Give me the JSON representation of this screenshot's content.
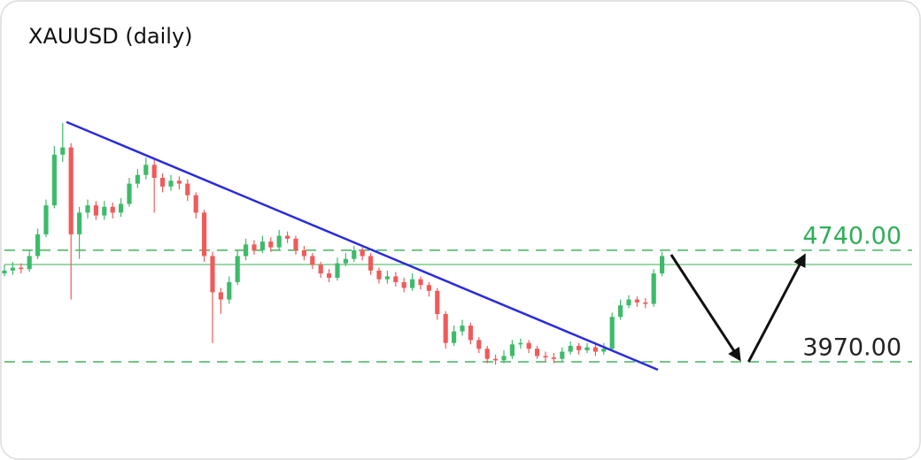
{
  "chart_data": {
    "type": "candlestick",
    "title": "XAUUSD (daily)",
    "up_color": "#3dbb6a",
    "down_color": "#f05a5a",
    "xlim": [
      0,
      110
    ],
    "ylim": [
      3750,
      5900
    ],
    "open": [
      4580,
      4600,
      4620,
      4610,
      4700,
      4850,
      5050,
      5400,
      5450,
      4850,
      5000,
      5050,
      4980,
      5040,
      5000,
      5060,
      5200,
      5260,
      5330,
      5240,
      5180,
      5220,
      5200,
      5120,
      5000,
      4700,
      4450,
      4400,
      4520,
      4700,
      4780,
      4740,
      4800,
      4760,
      4840,
      4820,
      4740,
      4700,
      4640,
      4580,
      4550,
      4650,
      4680,
      4740,
      4700,
      4600,
      4540,
      4560,
      4520,
      4480,
      4540,
      4500,
      4460,
      4300,
      4100,
      4180,
      4220,
      4120,
      4060,
      3990,
      3980,
      4010,
      4090,
      4100,
      4060,
      4010,
      4000,
      3990,
      4040,
      4080,
      4050,
      4070,
      4040,
      4060,
      4280,
      4360,
      4400,
      4380,
      4370,
      4580
    ],
    "high": [
      4640,
      4660,
      4650,
      4740,
      4890,
      5090,
      5460,
      5620,
      5480,
      5040,
      5090,
      5080,
      5080,
      5070,
      5100,
      5240,
      5300,
      5380,
      5370,
      5270,
      5260,
      5250,
      5230,
      5140,
      5020,
      4730,
      4480,
      4560,
      4740,
      4820,
      4810,
      4840,
      4830,
      4880,
      4870,
      4840,
      4770,
      4720,
      4660,
      4610,
      4690,
      4720,
      4770,
      4760,
      4720,
      4620,
      4600,
      4590,
      4550,
      4580,
      4560,
      4520,
      4480,
      4320,
      4220,
      4260,
      4240,
      4140,
      4080,
      4020,
      4050,
      4120,
      4130,
      4120,
      4080,
      4040,
      4030,
      4070,
      4110,
      4100,
      4100,
      4090,
      4100,
      4310,
      4400,
      4430,
      4420,
      4410,
      4610,
      4730
    ],
    "low": [
      4560,
      4570,
      4580,
      4590,
      4680,
      4830,
      5030,
      5350,
      4400,
      4680,
      4960,
      4950,
      4950,
      4960,
      4970,
      5040,
      5170,
      5230,
      5000,
      5140,
      5150,
      5160,
      5080,
      4960,
      4660,
      4100,
      4300,
      4370,
      4500,
      4670,
      4710,
      4720,
      4730,
      4740,
      4790,
      4710,
      4670,
      4610,
      4550,
      4520,
      4530,
      4630,
      4660,
      4670,
      4570,
      4510,
      4510,
      4490,
      4450,
      4460,
      4470,
      4420,
      4260,
      4060,
      4080,
      4150,
      4090,
      4030,
      3960,
      3950,
      3960,
      3990,
      4060,
      4030,
      3990,
      3970,
      3960,
      3970,
      4020,
      4020,
      4030,
      4010,
      4020,
      4040,
      4260,
      4340,
      4350,
      4340,
      4350,
      4560
    ],
    "close": [
      4600,
      4620,
      4610,
      4700,
      4850,
      5050,
      5400,
      5450,
      4850,
      5000,
      5050,
      4980,
      5040,
      5000,
      5060,
      5200,
      5260,
      5330,
      5240,
      5180,
      5220,
      5200,
      5120,
      5000,
      4700,
      4450,
      4400,
      4520,
      4700,
      4780,
      4740,
      4800,
      4760,
      4840,
      4820,
      4740,
      4700,
      4640,
      4580,
      4550,
      4650,
      4680,
      4740,
      4700,
      4600,
      4540,
      4560,
      4520,
      4480,
      4540,
      4500,
      4460,
      4300,
      4100,
      4180,
      4220,
      4120,
      4060,
      3990,
      3980,
      4010,
      4090,
      4100,
      4060,
      4010,
      4000,
      3990,
      4040,
      4080,
      4050,
      4070,
      4040,
      4060,
      4280,
      4360,
      4400,
      4380,
      4370,
      4580,
      4700
    ],
    "levels": [
      {
        "value": 4740,
        "label": "4740.00",
        "style": "dashed",
        "color": "#45b35f",
        "label_color": "#2fae57"
      },
      {
        "value": 3970,
        "label": "3970.00",
        "style": "dashed",
        "color": "#45b35f",
        "label_color": "#222222"
      },
      {
        "value": 4642,
        "style": "solid",
        "color": "#7ccb8c"
      }
    ],
    "trendline": {
      "x": [
        7.45,
        78.5
      ],
      "y": [
        5626,
        3915
      ],
      "color": "#2b2bdc"
    },
    "arrows": {
      "color": "#111111",
      "items": [
        {
          "x": [
            80.1,
            88.3
          ],
          "y": [
            4709,
            3988
          ]
        },
        {
          "x": [
            89.4,
            96.1
          ],
          "y": [
            3970,
            4703
          ]
        }
      ]
    }
  }
}
